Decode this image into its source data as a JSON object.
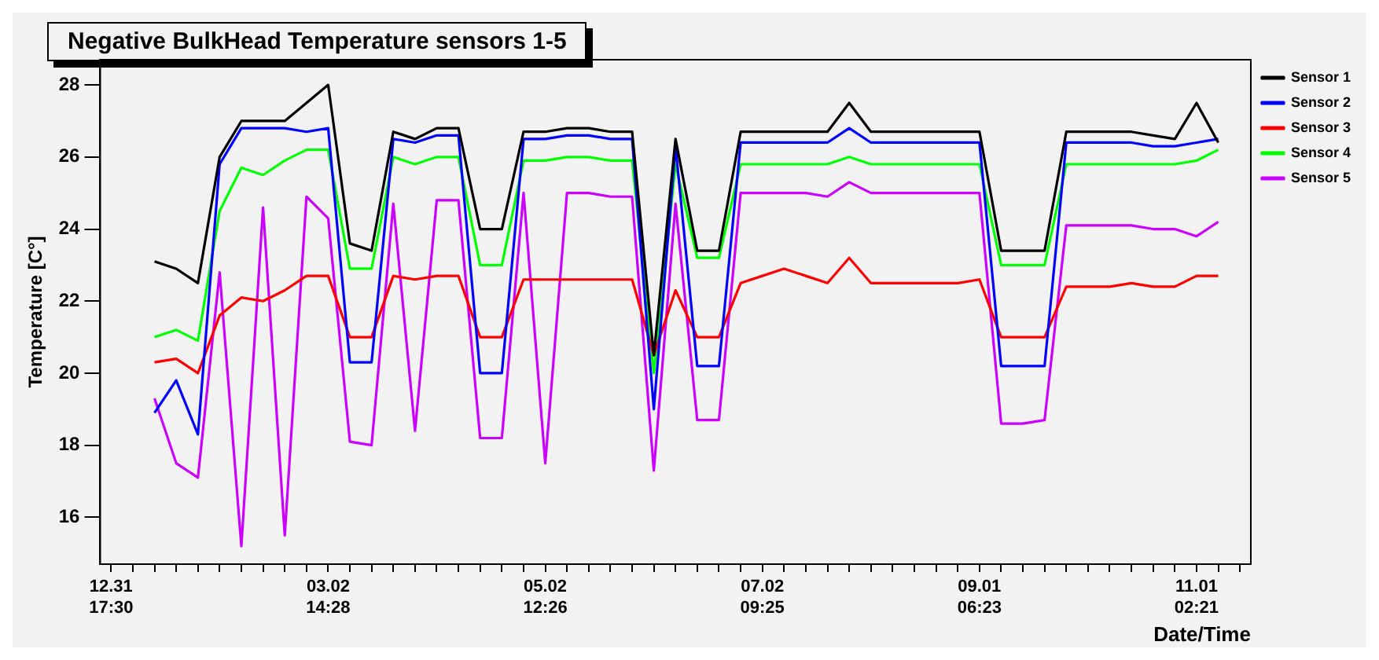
{
  "chart_data": {
    "type": "line",
    "title": "Negative BulkHead Temperature sensors 1-5",
    "xlabel": "Date/Time",
    "ylabel": "Temperature [C°]",
    "categories": [
      "12.31 17:30",
      null,
      null,
      null,
      null,
      null,
      null,
      null,
      null,
      null,
      "03.02 14:28",
      null,
      null,
      null,
      null,
      null,
      null,
      null,
      null,
      null,
      "05.02 12:26",
      null,
      null,
      null,
      null,
      null,
      null,
      null,
      null,
      null,
      "07.02 09:25",
      null,
      null,
      null,
      null,
      null,
      null,
      null,
      null,
      null,
      "09.01 06:23",
      null,
      null,
      null,
      null,
      null,
      null,
      null,
      null,
      null,
      "11.01 02:21",
      null,
      null
    ],
    "series": [
      {
        "name": "Sensor 1",
        "color": "#000000",
        "values": [
          null,
          null,
          23.1,
          22.9,
          22.5,
          26.0,
          27.0,
          27.0,
          27.0,
          27.5,
          28.0,
          23.6,
          23.4,
          26.7,
          26.5,
          26.8,
          26.8,
          24.0,
          24.0,
          26.7,
          26.7,
          26.8,
          26.8,
          26.7,
          26.7,
          20.5,
          26.5,
          23.4,
          23.4,
          26.7,
          26.7,
          26.7,
          26.7,
          26.7,
          27.5,
          26.7,
          26.7,
          26.7,
          26.7,
          26.7,
          26.7,
          23.4,
          23.4,
          23.4,
          26.7,
          26.7,
          26.7,
          26.7,
          26.6,
          26.5,
          27.5,
          26.4,
          null
        ]
      },
      {
        "name": "Sensor 2",
        "color": "#0000ff",
        "values": [
          null,
          null,
          18.9,
          19.8,
          18.3,
          25.8,
          26.8,
          26.8,
          26.8,
          26.7,
          26.8,
          20.3,
          20.3,
          26.5,
          26.4,
          26.6,
          26.6,
          20.0,
          20.0,
          26.5,
          26.5,
          26.6,
          26.6,
          26.5,
          26.5,
          19.0,
          26.3,
          20.2,
          20.2,
          26.4,
          26.4,
          26.4,
          26.4,
          26.4,
          26.8,
          26.4,
          26.4,
          26.4,
          26.4,
          26.4,
          26.4,
          20.2,
          20.2,
          20.2,
          26.4,
          26.4,
          26.4,
          26.4,
          26.3,
          26.3,
          26.4,
          26.5,
          null
        ]
      },
      {
        "name": "Sensor 3",
        "color": "#ff0000",
        "values": [
          null,
          null,
          20.3,
          20.4,
          20.0,
          21.6,
          22.1,
          22.0,
          22.3,
          22.7,
          22.7,
          21.0,
          21.0,
          22.7,
          22.6,
          22.7,
          22.7,
          21.0,
          21.0,
          22.6,
          22.6,
          22.6,
          22.6,
          22.6,
          22.6,
          20.5,
          22.3,
          21.0,
          21.0,
          22.5,
          22.7,
          22.9,
          22.7,
          22.5,
          23.2,
          22.5,
          22.5,
          22.5,
          22.5,
          22.5,
          22.6,
          21.0,
          21.0,
          21.0,
          22.4,
          22.4,
          22.4,
          22.5,
          22.4,
          22.4,
          22.7,
          22.7,
          null
        ]
      },
      {
        "name": "Sensor 4",
        "color": "#00ff00",
        "values": [
          null,
          null,
          21.0,
          21.2,
          20.9,
          24.5,
          25.7,
          25.5,
          25.9,
          26.2,
          26.2,
          22.9,
          22.9,
          26.0,
          25.8,
          26.0,
          26.0,
          23.0,
          23.0,
          25.9,
          25.9,
          26.0,
          26.0,
          25.9,
          25.9,
          20.0,
          25.8,
          23.2,
          23.2,
          25.8,
          25.8,
          25.8,
          25.8,
          25.8,
          26.0,
          25.8,
          25.8,
          25.8,
          25.8,
          25.8,
          25.8,
          23.0,
          23.0,
          23.0,
          25.8,
          25.8,
          25.8,
          25.8,
          25.8,
          25.8,
          25.9,
          26.2,
          null
        ]
      },
      {
        "name": "Sensor 5",
        "color": "#cc00ff",
        "values": [
          null,
          null,
          19.3,
          17.5,
          17.1,
          22.8,
          15.2,
          24.6,
          15.5,
          24.9,
          24.3,
          18.1,
          18.0,
          24.7,
          18.4,
          24.8,
          24.8,
          18.2,
          18.2,
          25.0,
          17.5,
          25.0,
          25.0,
          24.9,
          24.9,
          17.3,
          24.7,
          18.7,
          18.7,
          25.0,
          25.0,
          25.0,
          25.0,
          24.9,
          25.3,
          25.0,
          25.0,
          25.0,
          25.0,
          25.0,
          25.0,
          18.6,
          18.6,
          18.7,
          24.1,
          24.1,
          24.1,
          24.1,
          24.0,
          24.0,
          23.8,
          24.2,
          null
        ]
      }
    ],
    "ylim": [
      14.7,
      28.7
    ],
    "yticks": [
      16,
      18,
      20,
      22,
      24,
      26,
      28
    ],
    "grid": false,
    "legend": "top right",
    "marker": "none",
    "line_style": "solid"
  }
}
